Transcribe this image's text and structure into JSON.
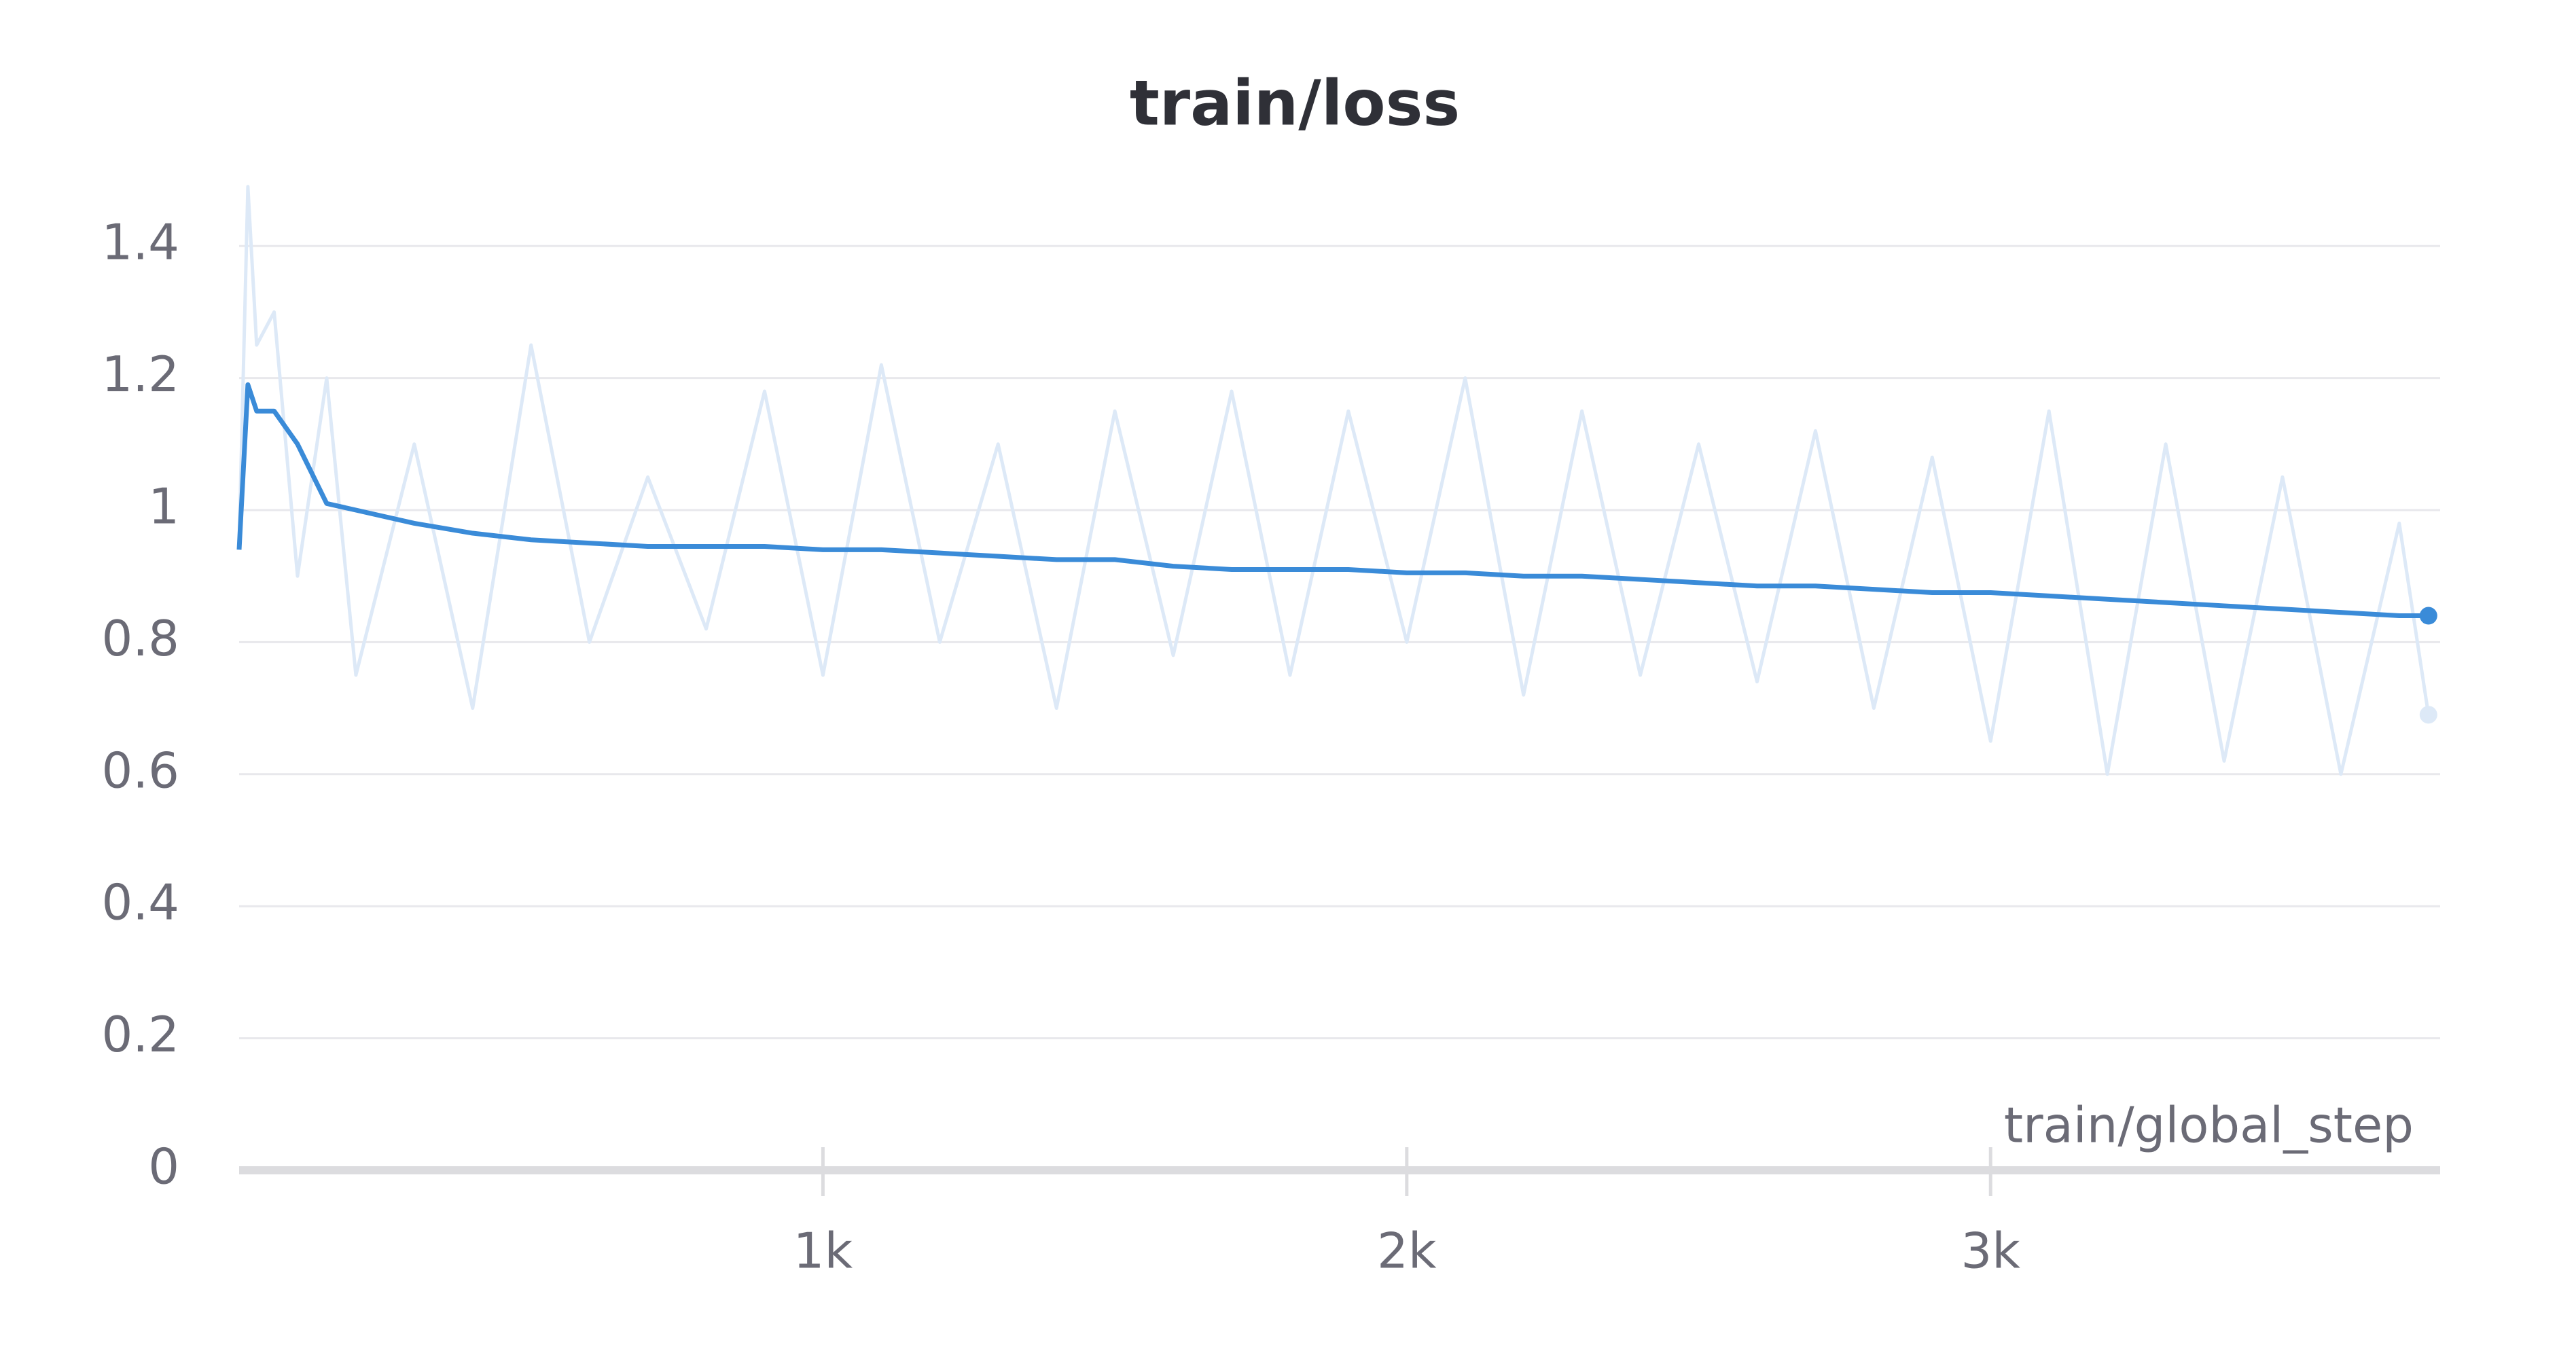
{
  "chart_data": {
    "type": "line",
    "title": "train/loss",
    "x_label": "train/global_step",
    "x": [
      0,
      15,
      30,
      60,
      100,
      150,
      200,
      300,
      400,
      500,
      600,
      700,
      800,
      900,
      1000,
      1100,
      1200,
      1300,
      1400,
      1500,
      1600,
      1700,
      1800,
      1900,
      2000,
      2100,
      2200,
      2300,
      2400,
      2500,
      2600,
      2700,
      2800,
      2900,
      3000,
      3100,
      3200,
      3300,
      3400,
      3500,
      3600,
      3700,
      3750
    ],
    "series": [
      {
        "color": "#dde9f7",
        "values": [
          0.95,
          1.49,
          1.25,
          1.3,
          0.9,
          1.2,
          0.75,
          1.1,
          0.7,
          1.25,
          0.8,
          1.05,
          0.82,
          1.18,
          0.75,
          1.22,
          0.8,
          1.1,
          0.7,
          1.15,
          0.78,
          1.18,
          0.75,
          1.15,
          0.8,
          1.2,
          0.72,
          1.15,
          0.75,
          1.1,
          0.74,
          1.12,
          0.7,
          1.08,
          0.65,
          1.15,
          0.6,
          1.1,
          0.62,
          1.05,
          0.6,
          0.98,
          0.69
        ]
      },
      {
        "color": "#3a8bd8",
        "values": [
          0.94,
          1.19,
          1.15,
          1.15,
          1.1,
          1.01,
          1.0,
          0.98,
          0.965,
          0.955,
          0.95,
          0.945,
          0.945,
          0.945,
          0.94,
          0.94,
          0.935,
          0.93,
          0.925,
          0.925,
          0.915,
          0.91,
          0.91,
          0.91,
          0.905,
          0.905,
          0.9,
          0.9,
          0.895,
          0.89,
          0.885,
          0.885,
          0.88,
          0.875,
          0.875,
          0.87,
          0.865,
          0.86,
          0.855,
          0.85,
          0.845,
          0.84,
          0.84
        ]
      }
    ],
    "xlim": [
      0,
      3770
    ],
    "ylim": [
      0,
      1.5
    ],
    "xticks": [
      {
        "value": 1000,
        "label": "1k"
      },
      {
        "value": 2000,
        "label": "2k"
      },
      {
        "value": 3000,
        "label": "3k"
      }
    ],
    "yticks": [
      0,
      0.2,
      0.4,
      0.6,
      0.8,
      1,
      1.2,
      1.4
    ],
    "grid": true
  }
}
